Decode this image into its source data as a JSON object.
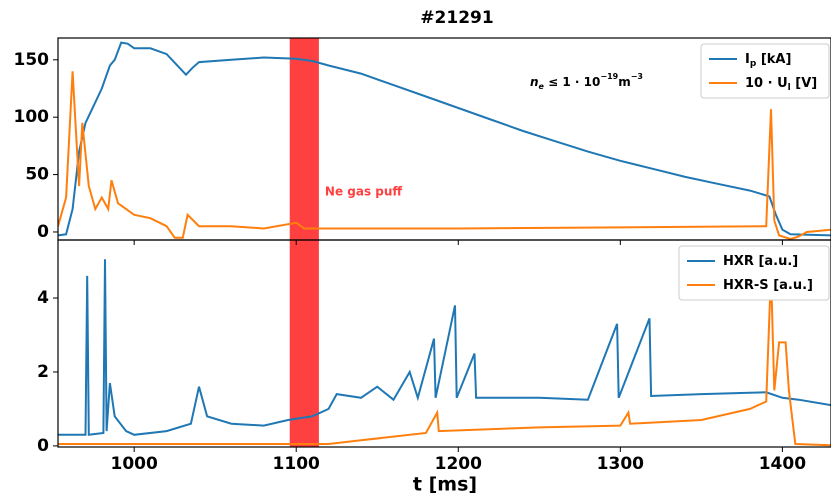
{
  "chart_data": [
    {
      "type": "line",
      "title": "#21291",
      "xlim": [
        953,
        1430
      ],
      "ylim": [
        -7,
        169
      ],
      "xticks": [
        1000,
        1100,
        1200,
        1300,
        1400
      ],
      "yticks": [
        0,
        50,
        100,
        150
      ],
      "legend": "upper right",
      "shade": {
        "x": [
          1096,
          1114
        ],
        "label": "Ne gas puff",
        "color": "#ff4040"
      },
      "annotation": {
        "n": "n",
        "sub": "e",
        "rel": " ≤ 1 · 10",
        "sup": "−19",
        "unit": "m",
        "sup2": "−3"
      },
      "series": [
        {
          "name": "I",
          "name_sub": "p",
          "name_suffix": " [kA]",
          "color": "#1f77b4",
          "x": [
            953,
            958,
            962,
            966,
            970,
            975,
            980,
            985,
            988,
            992,
            996,
            1000,
            1010,
            1020,
            1028,
            1032,
            1036,
            1040,
            1060,
            1080,
            1100,
            1110,
            1120,
            1140,
            1160,
            1180,
            1200,
            1220,
            1240,
            1260,
            1280,
            1300,
            1320,
            1340,
            1360,
            1380,
            1392,
            1396,
            1400,
            1405,
            1430
          ],
          "values": [
            -3,
            -2,
            20,
            70,
            95,
            110,
            125,
            145,
            150,
            165,
            164,
            160,
            160,
            155,
            143,
            137,
            143,
            148,
            150,
            152,
            151,
            149,
            145,
            138,
            128,
            118,
            108,
            98,
            88,
            79,
            70,
            62,
            55,
            48,
            42,
            36,
            31,
            15,
            2,
            -2,
            -3
          ]
        },
        {
          "name": "10 · U",
          "name_sub": "l",
          "name_suffix": " [V]",
          "color": "#ff7f0e",
          "x": [
            953,
            958,
            962,
            964,
            966,
            968,
            972,
            976,
            980,
            984,
            986,
            990,
            1000,
            1010,
            1020,
            1025,
            1030,
            1033,
            1040,
            1060,
            1080,
            1100,
            1105,
            1120,
            1200,
            1300,
            1390,
            1393,
            1395,
            1398,
            1405,
            1410,
            1415,
            1430
          ],
          "values": [
            5,
            30,
            140,
            90,
            40,
            95,
            40,
            20,
            30,
            20,
            45,
            25,
            15,
            12,
            5,
            -5,
            -5,
            15,
            5,
            5,
            3,
            8,
            3,
            3,
            3,
            4,
            5,
            107,
            10,
            -3,
            -6,
            -4,
            0,
            2
          ]
        }
      ]
    },
    {
      "type": "line",
      "xlabel": "t [ms]",
      "xlim": [
        953,
        1430
      ],
      "ylim": [
        -0.03,
        5.57
      ],
      "xticks": [
        1000,
        1100,
        1200,
        1300,
        1400
      ],
      "yticks": [
        0,
        2,
        4
      ],
      "legend": "upper right",
      "series": [
        {
          "name": "HXR [a.u.]",
          "color": "#1f77b4",
          "x": [
            953,
            970,
            971,
            972,
            981,
            982,
            983,
            985,
            988,
            995,
            1000,
            1020,
            1035,
            1040,
            1045,
            1060,
            1080,
            1095,
            1110,
            1120,
            1125,
            1140,
            1150,
            1160,
            1170,
            1175,
            1185,
            1186,
            1198,
            1199,
            1210,
            1211,
            1250,
            1280,
            1298,
            1299,
            1318,
            1319,
            1350,
            1390,
            1400,
            1410,
            1430
          ],
          "values": [
            0.3,
            0.3,
            4.6,
            0.3,
            0.35,
            5.05,
            0.4,
            1.7,
            0.8,
            0.4,
            0.3,
            0.4,
            0.6,
            1.6,
            0.8,
            0.6,
            0.55,
            0.7,
            0.8,
            1.0,
            1.4,
            1.3,
            1.6,
            1.25,
            2.0,
            1.3,
            2.9,
            1.3,
            3.8,
            1.3,
            2.5,
            1.3,
            1.3,
            1.25,
            3.3,
            1.3,
            3.45,
            1.35,
            1.4,
            1.45,
            1.3,
            1.25,
            1.1
          ]
        },
        {
          "name": "HXR-S [a.u.]",
          "color": "#ff7f0e",
          "x": [
            953,
            1120,
            1140,
            1180,
            1187,
            1188,
            1250,
            1300,
            1305,
            1306,
            1350,
            1380,
            1390,
            1393,
            1395,
            1398,
            1402,
            1404,
            1408,
            1430
          ],
          "values": [
            0.05,
            0.05,
            0.15,
            0.35,
            0.9,
            0.4,
            0.5,
            0.55,
            0.9,
            0.6,
            0.7,
            1.0,
            1.2,
            4.7,
            1.5,
            2.8,
            2.8,
            1.5,
            0.05,
            0.02
          ]
        }
      ]
    }
  ]
}
